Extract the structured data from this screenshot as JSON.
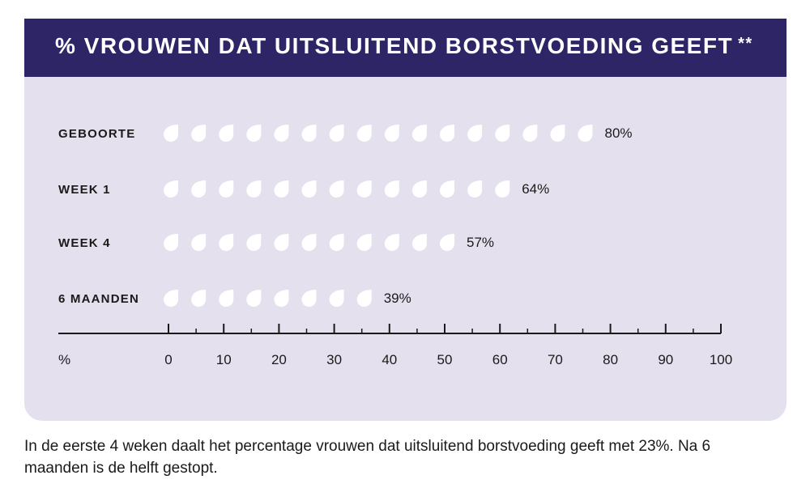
{
  "title": "% VROUWEN DAT UITSLUITEND BORSTVOEDING GEEFT",
  "title_footnote_marker": "**",
  "caption": "In de eerste 4 weken daalt het percentage vrouwen dat uitsluitend borstvoeding geeft met 23%. Na 6 maanden is de helft gestopt.",
  "colors": {
    "header": "#2e2566",
    "panel": "#e5e0ee",
    "drop": "#ffffff",
    "text": "#1a1a1a"
  },
  "chart_data": {
    "type": "bar",
    "orientation": "horizontal",
    "mark": "drop-icon",
    "unit_per_icon": 5,
    "categories": [
      "GEBOORTE",
      "WEEK 1",
      "WEEK 4",
      "6 MAANDEN"
    ],
    "values": [
      80,
      64,
      57,
      39
    ],
    "value_labels": [
      "80%",
      "64%",
      "57%",
      "39%"
    ],
    "xlabel": "%",
    "xlim": [
      0,
      100
    ],
    "xticks": [
      0,
      10,
      20,
      30,
      40,
      50,
      60,
      70,
      80,
      90,
      100
    ],
    "xtick_labels": [
      "0",
      "10",
      "20",
      "30",
      "40",
      "50",
      "60",
      "70",
      "80",
      "90",
      "100"
    ],
    "minor_ticks_every": 5,
    "grid": false,
    "legend": "none"
  }
}
